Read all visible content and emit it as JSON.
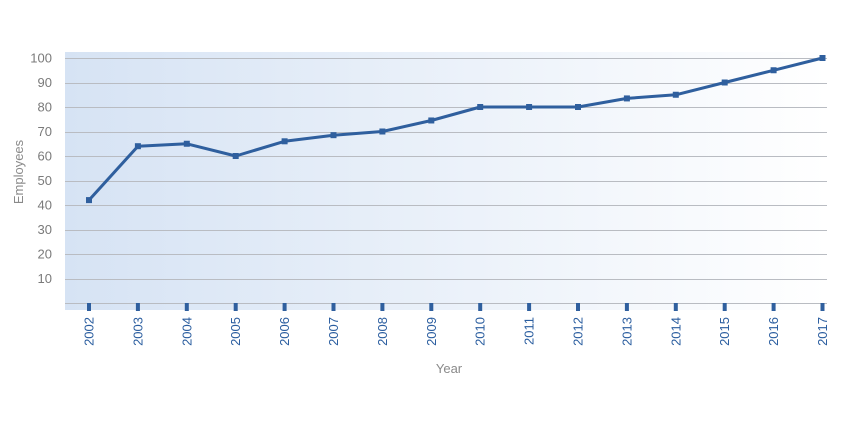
{
  "chart_data": {
    "type": "line",
    "title": "",
    "xlabel": "Year",
    "ylabel": "Employees",
    "ylim": [
      0,
      100
    ],
    "yticks": [
      10,
      20,
      30,
      40,
      50,
      60,
      70,
      80,
      90,
      100
    ],
    "grid": true,
    "categories": [
      "2002",
      "2003",
      "2004",
      "2005",
      "2006",
      "2007",
      "2008",
      "2009",
      "2010",
      "2011",
      "2012",
      "2013",
      "2014",
      "2015",
      "2016",
      "2017"
    ],
    "series": [
      {
        "name": "Employees",
        "values": [
          42,
          64,
          65,
          60,
          66,
          68.5,
          70,
          74.5,
          80,
          80,
          80,
          83.5,
          85,
          90,
          95,
          100
        ]
      }
    ],
    "colors": {
      "line": "#2f5f9e",
      "grid": "#b9bcc2",
      "tick_x": "#2a5d9f",
      "bg_left": "#d6e3f4",
      "bg_right": "#ffffff"
    }
  }
}
